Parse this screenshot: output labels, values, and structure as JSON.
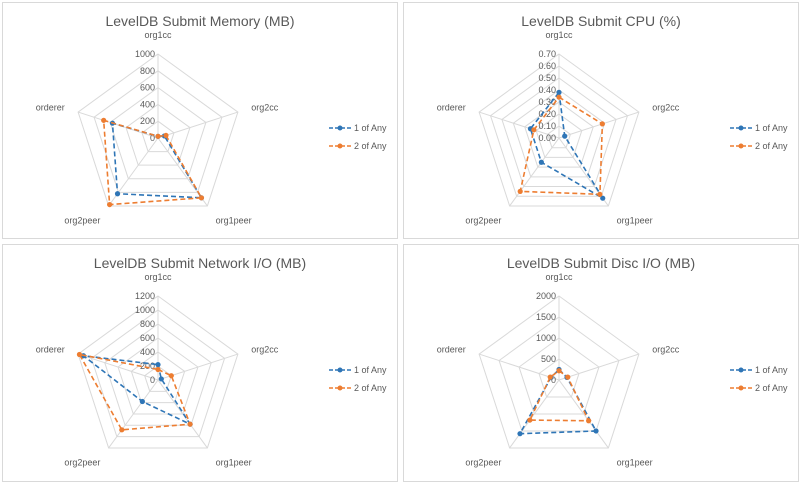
{
  "colors": {
    "series1": "#2e75b6",
    "series2": "#ed7d31",
    "grid": "#d9d9d9",
    "text": "#595959"
  },
  "chart_data": [
    {
      "type": "radar",
      "title": "LevelDB Submit Memory (MB)",
      "categories": [
        "org1cc",
        "org2cc",
        "org1peer",
        "org2peer",
        "orderer"
      ],
      "rticks": [
        "0",
        "200",
        "400",
        "600",
        "800",
        "1000"
      ],
      "rlim": [
        0,
        1000
      ],
      "legend": "right",
      "series": [
        {
          "name": "1 of Any",
          "values": [
            20,
            80,
            880,
            820,
            570
          ]
        },
        {
          "name": "2 of Any",
          "values": [
            20,
            100,
            880,
            980,
            680
          ]
        }
      ]
    },
    {
      "type": "radar",
      "title": "LevelDB Submit CPU (%)",
      "categories": [
        "org1cc",
        "org2cc",
        "org1peer",
        "org2peer",
        "orderer"
      ],
      "rticks": [
        "0.00",
        "0.10",
        "0.20",
        "0.30",
        "0.40",
        "0.50",
        "0.60",
        "0.70"
      ],
      "rlim": [
        0,
        0.7
      ],
      "legend": "right",
      "series": [
        {
          "name": "1 of Any",
          "values": [
            0.38,
            0.05,
            0.62,
            0.25,
            0.25
          ]
        },
        {
          "name": "2 of Any",
          "values": [
            0.34,
            0.38,
            0.58,
            0.55,
            0.22
          ]
        }
      ]
    },
    {
      "type": "radar",
      "title": "LevelDB Submit Network I/O (MB)",
      "categories": [
        "org1cc",
        "org2cc",
        "org1peer",
        "org2peer",
        "orderer"
      ],
      "rticks": [
        "0",
        "200",
        "400",
        "600",
        "800",
        "1000",
        "1200"
      ],
      "rlim": [
        0,
        1200
      ],
      "legend": "right",
      "series": [
        {
          "name": "1 of Any",
          "values": [
            220,
            50,
            780,
            380,
            1120
          ]
        },
        {
          "name": "2 of Any",
          "values": [
            150,
            200,
            780,
            880,
            1180
          ]
        }
      ]
    },
    {
      "type": "radar",
      "title": "LevelDB Submit Disc I/O (MB)",
      "categories": [
        "org1cc",
        "org2cc",
        "org1peer",
        "org2peer",
        "orderer"
      ],
      "rticks": [
        "0",
        "500",
        "1000",
        "1500",
        "2000"
      ],
      "rlim": [
        0,
        2000
      ],
      "legend": "right",
      "series": [
        {
          "name": "1 of Any",
          "values": [
            250,
            200,
            1500,
            1580,
            200
          ]
        },
        {
          "name": "2 of Any",
          "values": [
            220,
            220,
            1200,
            1180,
            220
          ]
        }
      ]
    }
  ]
}
